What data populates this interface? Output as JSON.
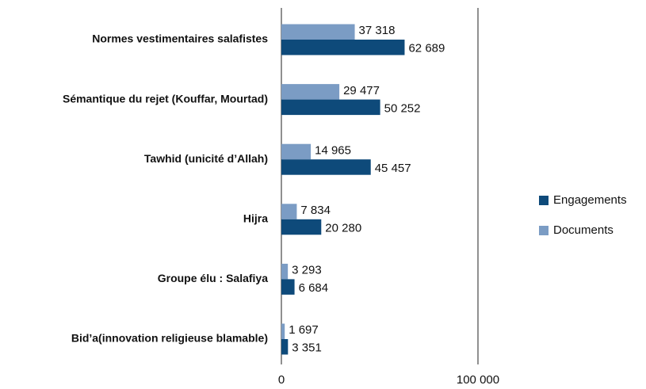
{
  "chart_data": {
    "type": "bar",
    "orientation": "horizontal",
    "categories": [
      "Normes vestimentaires salafistes",
      "Sémantique du rejet (Kouffar, Mourtad)",
      "Tawhid (unicité d’Allah)",
      "Hijra",
      "Groupe élu : Salafiya",
      "Bid’a(innovation religieuse blamable)"
    ],
    "series": [
      {
        "name": "Engagements",
        "color": "#0e4a7a",
        "values": [
          62689,
          50252,
          45457,
          20280,
          6684,
          3351
        ],
        "value_labels": [
          "62 689",
          "50 252",
          "45 457",
          "20 280",
          "6 684",
          "3 351"
        ]
      },
      {
        "name": "Documents",
        "color": "#7b9cc4",
        "values": [
          37318,
          29477,
          14965,
          7834,
          3293,
          1697
        ],
        "value_labels": [
          "37 318",
          "29 477",
          "14 965",
          "7 834",
          "3 293",
          "1 697"
        ]
      }
    ],
    "xlim": [
      0,
      100000
    ],
    "xticks": [
      0,
      {
        "value": 100000,
        "label": "100 000"
      }
    ],
    "grid": true,
    "legend": "right"
  }
}
